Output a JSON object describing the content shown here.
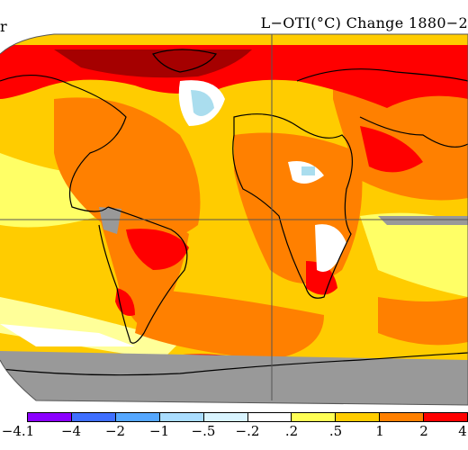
{
  "map": {
    "title": "L−OTI(°C) Change 1880−2",
    "corner_mark": "r",
    "colors": {
      "ocean_white": "#ffffff",
      "light_yellow": "#ffff66",
      "yellow": "#ffcc00",
      "orange": "#ff8000",
      "red": "#ff0000",
      "dark_red": "#cc0000",
      "deep_red": "#a50000",
      "light_blue": "#aaddee",
      "no_data": "#999999"
    }
  },
  "legend": {
    "tick_labels": [
      "−4.1",
      "−4",
      "−2",
      "−1",
      "−.5",
      "−.2",
      ".2",
      ".5",
      "1",
      "2",
      "4"
    ],
    "swatches": [
      {
        "color": "#8b00ff"
      },
      {
        "color": "#3f6fff"
      },
      {
        "color": "#55a7ff"
      },
      {
        "color": "#aaddff"
      },
      {
        "color": "#d9f4ff"
      },
      {
        "color": "#ffffff"
      },
      {
        "color": "#ffff55"
      },
      {
        "color": "#ffcc00"
      },
      {
        "color": "#ff8000"
      },
      {
        "color": "#ff0000"
      }
    ]
  }
}
